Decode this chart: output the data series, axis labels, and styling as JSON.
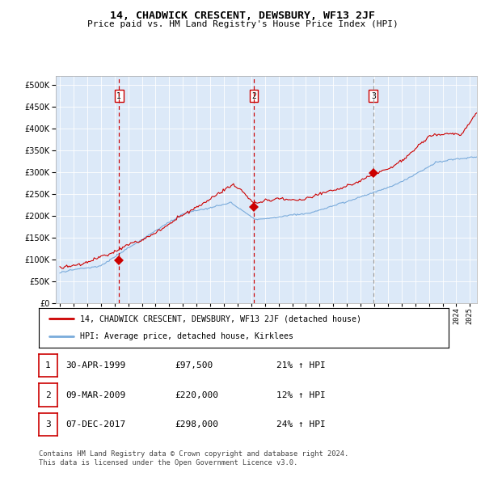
{
  "title": "14, CHADWICK CRESCENT, DEWSBURY, WF13 2JF",
  "subtitle": "Price paid vs. HM Land Registry's House Price Index (HPI)",
  "legend_line1": "14, CHADWICK CRESCENT, DEWSBURY, WF13 2JF (detached house)",
  "legend_line2": "HPI: Average price, detached house, Kirklees",
  "footer1": "Contains HM Land Registry data © Crown copyright and database right 2024.",
  "footer2": "This data is licensed under the Open Government Licence v3.0.",
  "table_rows": [
    {
      "num": "1",
      "date": "30-APR-1999",
      "price": "£97,500",
      "change": "21% ↑ HPI"
    },
    {
      "num": "2",
      "date": "09-MAR-2009",
      "price": "£220,000",
      "change": "12% ↑ HPI"
    },
    {
      "num": "3",
      "date": "07-DEC-2017",
      "price": "£298,000",
      "change": "24% ↑ HPI"
    }
  ],
  "sale_dates": [
    1999.33,
    2009.19,
    2017.93
  ],
  "sale_prices": [
    97500,
    220000,
    298000
  ],
  "plot_bg": "#dce9f8",
  "red_color": "#cc0000",
  "blue_color": "#7aabdb",
  "ylim": [
    0,
    520000
  ],
  "xlim_start": 1994.7,
  "xlim_end": 2025.5
}
